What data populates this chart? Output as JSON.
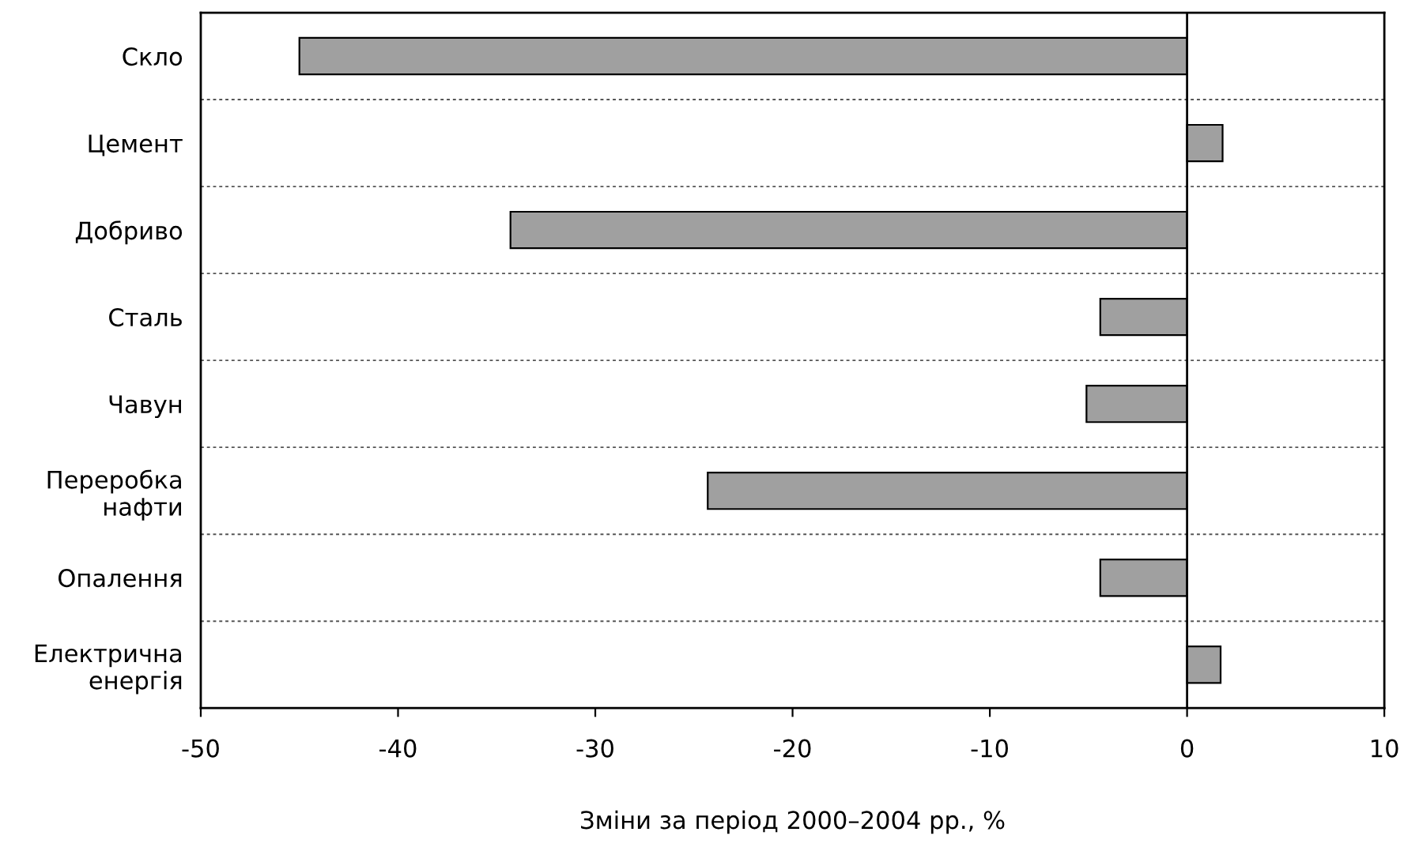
{
  "chart_data": {
    "type": "bar",
    "orientation": "horizontal",
    "categories": [
      "Скло",
      "Цемент",
      "Добриво",
      "Сталь",
      "Чавун",
      "Переробка\nнафти",
      "Опалення",
      "Електрична\nенергія"
    ],
    "values": [
      -45.0,
      1.8,
      -34.3,
      -4.4,
      -5.1,
      -24.3,
      -4.4,
      1.7
    ],
    "color": "#a0a0a0",
    "xlabel": "Зміни за період 2000–2004 рр., %",
    "xlim": [
      -50,
      10
    ],
    "xticks": [
      -50,
      -40,
      -30,
      -20,
      -10,
      0,
      10
    ],
    "ref_lines": [
      {
        "axis": "x",
        "value": 0,
        "color": "#000000"
      }
    ],
    "grid": "y"
  }
}
